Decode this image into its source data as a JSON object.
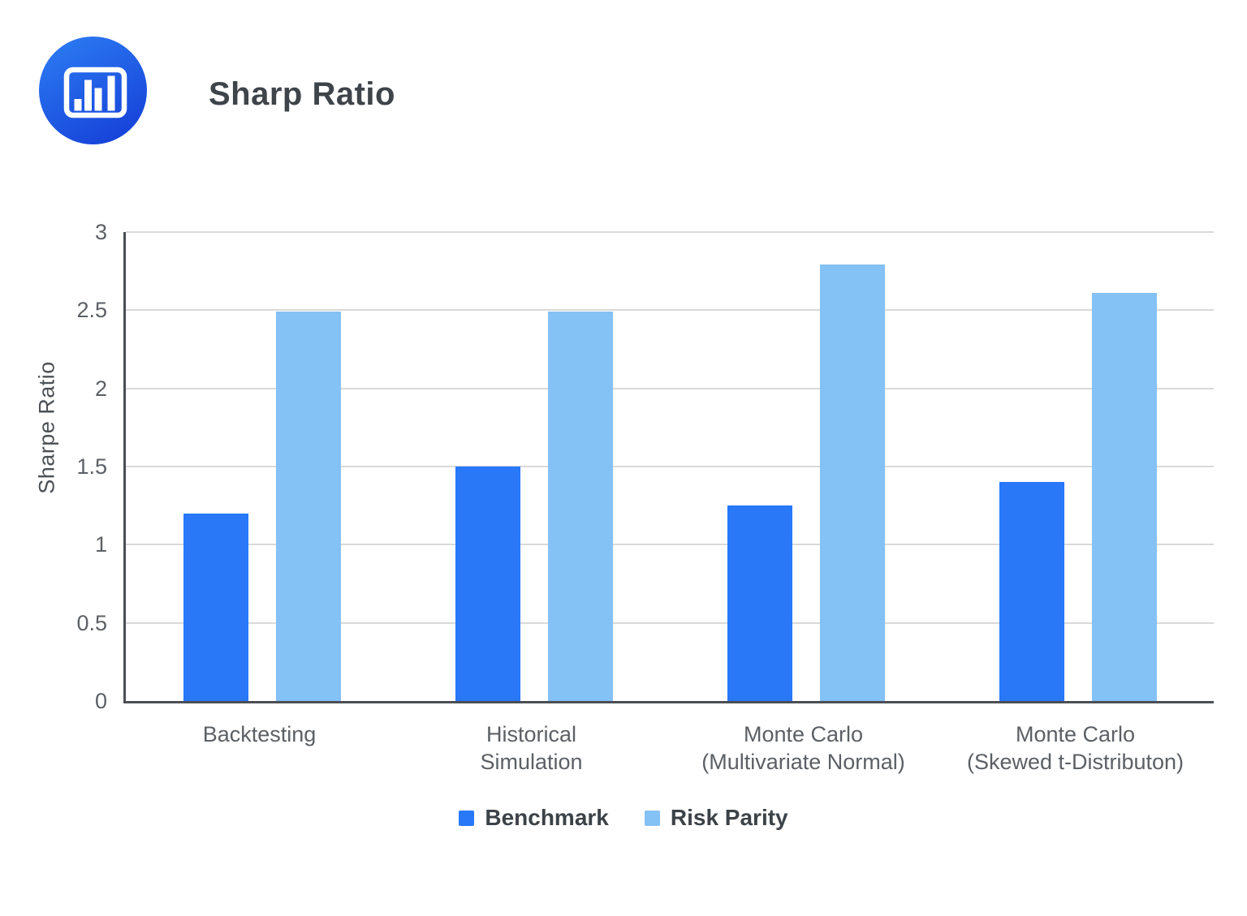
{
  "header": {
    "title": "Sharp Ratio",
    "title_color": "#3f444a",
    "logo_icon": "bar-chart-logo",
    "logo_colors": {
      "gradient_top": "#2b7af2",
      "gradient_bottom": "#1641d8",
      "glyph": "#ffffff"
    }
  },
  "chart_data": {
    "type": "bar",
    "title": "Sharp Ratio",
    "xlabel": "",
    "ylabel": "Sharpe Ratio",
    "ylim": [
      0,
      3
    ],
    "yticks": [
      0,
      0.5,
      1,
      1.5,
      2,
      2.5,
      3
    ],
    "grid": true,
    "legend_position": "bottom",
    "categories": [
      "Backtesting",
      "Historical\nSimulation",
      "Monte Carlo\n(Multivariate Normal)",
      "Monte Carlo\n(Skewed t-Distributon)"
    ],
    "series": [
      {
        "name": "Benchmark",
        "color": "#2878F8",
        "values": [
          1.2,
          1.5,
          1.25,
          1.4
        ]
      },
      {
        "name": "Risk Parity",
        "color": "#84C1F5",
        "values": [
          2.49,
          2.49,
          2.79,
          2.61
        ]
      }
    ],
    "axis_color": "#4b4e54",
    "gridline_color": "#d9d9d9",
    "tick_label_color": "#5c6065",
    "category_label_color": "#5c6065"
  }
}
